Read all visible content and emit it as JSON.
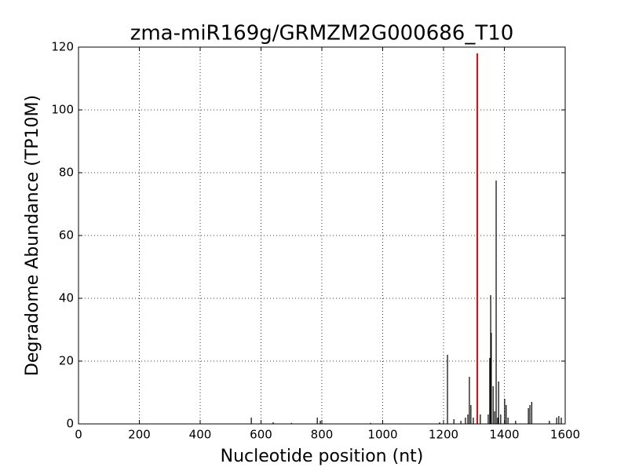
{
  "chart_data": {
    "type": "stem",
    "title": "zma-miR169g/GRMZM2G000686_T10",
    "x_label": "Nucleotide position (nt)",
    "y_label": "Degradome Abundance (TP10M)",
    "xlim": [
      0,
      1600
    ],
    "xticks": [
      0,
      200,
      400,
      600,
      800,
      1000,
      1200,
      1400,
      1600
    ],
    "ylim": [
      0,
      120
    ],
    "yticks": [
      0,
      20,
      40,
      60,
      80,
      100,
      120
    ],
    "grid": true,
    "series": [
      {
        "color": "#000000",
        "x": [
          568,
          640,
          700,
          785,
          795,
          960,
          1187,
          1213,
          1234,
          1257,
          1272,
          1280,
          1285,
          1290,
          1298,
          1321,
          1347,
          1352,
          1355,
          1357,
          1363,
          1368,
          1373,
          1378,
          1381,
          1388,
          1401,
          1406,
          1412,
          1437,
          1479,
          1484,
          1490,
          1548,
          1572,
          1579,
          1587
        ],
        "values": [
          2,
          0.5,
          0.3,
          2,
          1,
          0.3,
          0.5,
          22,
          1.5,
          1,
          2,
          3,
          15,
          6,
          2,
          3,
          3,
          21,
          41,
          29,
          12,
          4,
          77.5,
          2,
          13.5,
          3,
          8,
          6,
          2,
          1,
          5,
          6,
          7,
          1,
          2,
          2.5,
          2
        ]
      },
      {
        "color": "#ff0000",
        "x": [
          1311
        ],
        "values": [
          118
        ]
      }
    ]
  }
}
